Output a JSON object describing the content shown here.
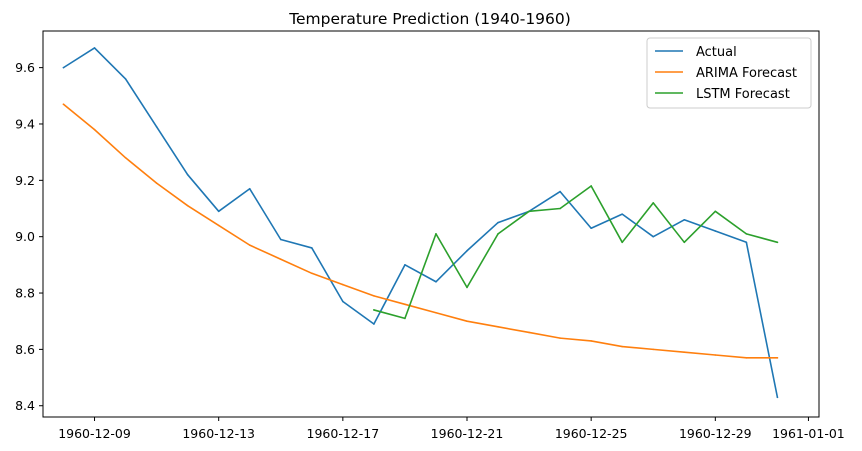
{
  "chart_data": {
    "type": "line",
    "title": "Temperature Prediction (1940-1960)",
    "xlabel": "",
    "ylabel": "",
    "x_dates": [
      "1960-12-08",
      "1960-12-09",
      "1960-12-10",
      "1960-12-11",
      "1960-12-12",
      "1960-12-13",
      "1960-12-14",
      "1960-12-15",
      "1960-12-16",
      "1960-12-17",
      "1960-12-18",
      "1960-12-19",
      "1960-12-20",
      "1960-12-21",
      "1960-12-22",
      "1960-12-23",
      "1960-12-24",
      "1960-12-25",
      "1960-12-26",
      "1960-12-27",
      "1960-12-28",
      "1960-12-29",
      "1960-12-30",
      "1960-12-31"
    ],
    "x_ticks": [
      "1960-12-09",
      "1960-12-13",
      "1960-12-17",
      "1960-12-21",
      "1960-12-25",
      "1960-12-29",
      "1961-01-01"
    ],
    "xlim": [
      "1960-12-07",
      "1961-01-01"
    ],
    "y_ticks": [
      8.4,
      8.6,
      8.8,
      9.0,
      9.2,
      9.4,
      9.6
    ],
    "ylim": [
      8.36,
      9.73
    ],
    "grid": false,
    "legend_position": "top-right",
    "series": [
      {
        "name": "Actual",
        "color": "#1f77b4",
        "x": [
          "1960-12-08",
          "1960-12-09",
          "1960-12-10",
          "1960-12-11",
          "1960-12-12",
          "1960-12-13",
          "1960-12-14",
          "1960-12-15",
          "1960-12-16",
          "1960-12-17",
          "1960-12-18",
          "1960-12-19",
          "1960-12-20",
          "1960-12-21",
          "1960-12-22",
          "1960-12-23",
          "1960-12-24",
          "1960-12-25",
          "1960-12-26",
          "1960-12-27",
          "1960-12-28",
          "1960-12-29",
          "1960-12-30",
          "1960-12-31"
        ],
        "values": [
          9.6,
          9.67,
          9.56,
          9.39,
          9.22,
          9.09,
          9.17,
          8.99,
          8.96,
          8.77,
          8.69,
          8.9,
          8.84,
          8.95,
          9.05,
          9.09,
          9.16,
          9.03,
          9.08,
          9.0,
          9.06,
          9.02,
          8.98,
          8.43
        ]
      },
      {
        "name": "ARIMA Forecast",
        "color": "#ff7f0e",
        "x": [
          "1960-12-08",
          "1960-12-09",
          "1960-12-10",
          "1960-12-11",
          "1960-12-12",
          "1960-12-13",
          "1960-12-14",
          "1960-12-15",
          "1960-12-16",
          "1960-12-17",
          "1960-12-18",
          "1960-12-19",
          "1960-12-20",
          "1960-12-21",
          "1960-12-22",
          "1960-12-23",
          "1960-12-24",
          "1960-12-25",
          "1960-12-26",
          "1960-12-27",
          "1960-12-28",
          "1960-12-29",
          "1960-12-30",
          "1960-12-31"
        ],
        "values": [
          9.47,
          9.38,
          9.28,
          9.19,
          9.11,
          9.04,
          8.97,
          8.92,
          8.87,
          8.83,
          8.79,
          8.76,
          8.73,
          8.7,
          8.68,
          8.66,
          8.64,
          8.63,
          8.61,
          8.6,
          8.59,
          8.58,
          8.57,
          8.57
        ]
      },
      {
        "name": "LSTM Forecast",
        "color": "#2ca02c",
        "x": [
          "1960-12-18",
          "1960-12-19",
          "1960-12-20",
          "1960-12-21",
          "1960-12-22",
          "1960-12-23",
          "1960-12-24",
          "1960-12-25",
          "1960-12-26",
          "1960-12-27",
          "1960-12-28",
          "1960-12-29",
          "1960-12-30",
          "1960-12-31"
        ],
        "values": [
          8.74,
          8.71,
          9.01,
          8.82,
          9.01,
          9.09,
          9.1,
          9.18,
          8.98,
          9.12,
          8.98,
          9.09,
          9.01,
          8.98
        ]
      }
    ]
  }
}
